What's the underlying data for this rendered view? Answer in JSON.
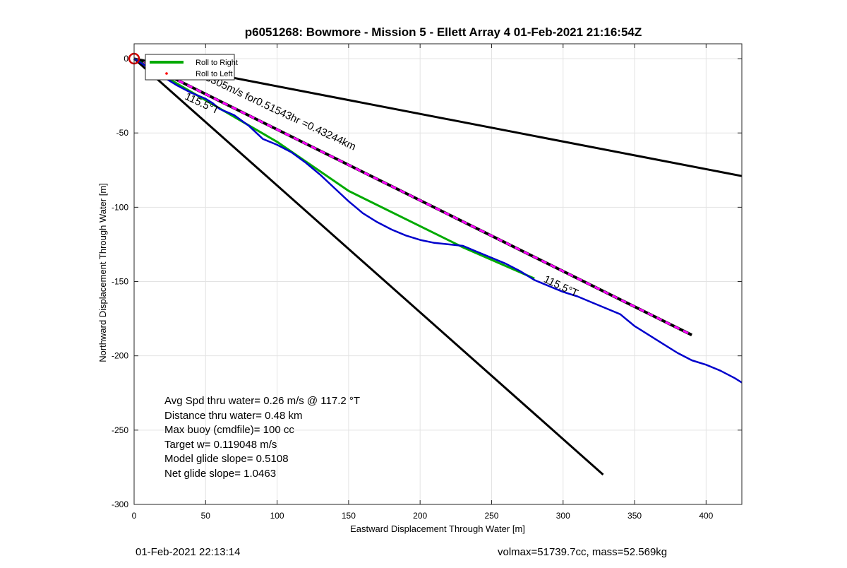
{
  "chart_data": {
    "type": "line",
    "title": "p6051268: Bowmore - Mission 5 - Ellett Array 4 01-Feb-2021 21:16:54Z",
    "xlabel": "Eastward Displacement Through Water [m]",
    "ylabel": "Northward Displacement Through Water [m]",
    "xlim": [
      0,
      425
    ],
    "ylim": [
      -300,
      10
    ],
    "grid": true,
    "xticks": [
      0,
      50,
      100,
      150,
      200,
      250,
      300,
      350,
      400
    ],
    "yticks": [
      0,
      -50,
      -100,
      -150,
      -200,
      -250,
      -300
    ],
    "legend": {
      "placement": "top-left",
      "entries": [
        {
          "label": "Roll to Right",
          "color": "#00aa00",
          "style": "line"
        },
        {
          "label": "Roll to Left",
          "color": "#ff0000",
          "style": "dot"
        }
      ]
    },
    "series": [
      {
        "role": "track",
        "color": "#0000cc",
        "x": [
          0,
          10,
          20,
          30,
          40,
          50,
          55,
          60,
          65,
          70,
          80,
          90,
          100,
          110,
          120,
          130,
          140,
          150,
          160,
          170,
          180,
          190,
          200,
          210,
          220,
          230,
          240,
          250,
          260,
          270,
          280,
          290,
          300,
          310,
          320,
          330,
          340,
          350,
          360,
          370,
          380,
          390,
          400,
          410,
          420,
          425
        ],
        "y": [
          0,
          -6,
          -12,
          -18,
          -23,
          -27,
          -30,
          -34,
          -36,
          -38,
          -45,
          -54,
          -58,
          -63,
          -70,
          -78,
          -87,
          -96,
          -104,
          -110,
          -115,
          -119,
          -122,
          -124,
          -125,
          -126,
          -130,
          -134,
          -138,
          -143,
          -149,
          -153,
          -157,
          -160,
          -164,
          -168,
          -172,
          -180,
          -186,
          -192,
          -198,
          -203,
          -206,
          -210,
          -215,
          -218
        ]
      },
      {
        "role": "roll-to-right",
        "color": "#00aa00",
        "x": [
          0,
          100,
          150,
          230,
          280
        ],
        "y": [
          0,
          -56,
          -89,
          -127,
          -148
        ]
      },
      {
        "role": "average-course",
        "color": "#ff00ff",
        "x": [
          0,
          390
        ],
        "y": [
          0,
          -186
        ]
      },
      {
        "role": "bound-upper",
        "color": "#000000",
        "x": [
          0,
          425
        ],
        "y": [
          0,
          -79
        ]
      },
      {
        "role": "bound-lower",
        "color": "#000000",
        "x": [
          0,
          328
        ],
        "y": [
          0,
          -280
        ]
      }
    ],
    "annotations": [
      {
        "text": "0.23305m/s for0.51543hr =0.43244km",
        "x": 40,
        "y": -10,
        "angle": 25.3
      },
      {
        "text": "115.5°T",
        "x": 35,
        "y": -27,
        "angle": 25.3
      },
      {
        "text": "115.5°T",
        "x": 286,
        "y": -150,
        "angle": 25.3
      }
    ],
    "start_marker": {
      "x": 0,
      "y": 0,
      "color": "#cc0000"
    },
    "stats": [
      "Avg Spd thru water=  0.26 m/s @ 117.2 °T",
      "Distance thru water=  0.48 km",
      "Max buoy (cmdfile)= 100 cc",
      "Target w= 0.119048 m/s",
      "Model glide slope= 0.5108",
      "Net glide slope= 1.0463"
    ]
  },
  "footer": {
    "timestamp": "01-Feb-2021 22:13:14",
    "params": "volmax=51739.7cc, mass=52.569kg"
  }
}
